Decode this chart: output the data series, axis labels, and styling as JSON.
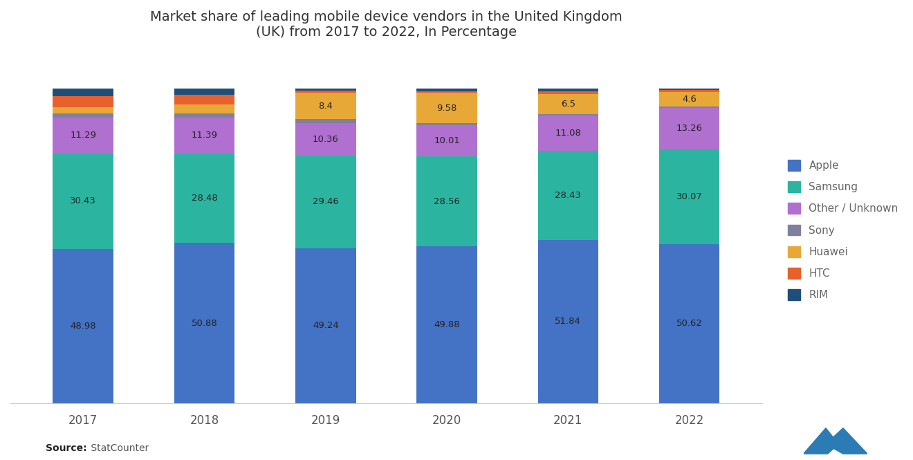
{
  "years": [
    "2017",
    "2018",
    "2019",
    "2020",
    "2021",
    "2022"
  ],
  "title": "Market share of leading mobile device vendors in the United Kingdom\n(UK) from 2017 to 2022, In Percentage",
  "source": "Source:",
  "source_name": " StatCounter",
  "series": [
    {
      "name": "Apple",
      "color": "#4472C4",
      "values": [
        48.98,
        50.88,
        49.24,
        49.88,
        51.84,
        50.62
      ]
    },
    {
      "name": "Samsung",
      "color": "#2BB5A0",
      "values": [
        30.43,
        28.48,
        29.46,
        28.56,
        28.43,
        30.07
      ]
    },
    {
      "name": "Other / Unknown",
      "color": "#B070D0",
      "values": [
        11.29,
        11.39,
        10.36,
        10.01,
        11.08,
        13.26
      ]
    },
    {
      "name": "Sony",
      "color": "#7F7F9F",
      "values": [
        1.5,
        1.3,
        1.2,
        0.6,
        0.5,
        0.4
      ]
    },
    {
      "name": "Huawei",
      "color": "#E8A838",
      "values": [
        1.8,
        2.85,
        8.4,
        9.58,
        6.5,
        4.6
      ]
    },
    {
      "name": "HTC",
      "color": "#E8602C",
      "values": [
        3.5,
        3.2,
        0.6,
        0.47,
        0.75,
        0.55
      ]
    },
    {
      "name": "RIM",
      "color": "#1F4E79",
      "values": [
        2.5,
        1.9,
        0.74,
        0.9,
        0.9,
        0.5
      ]
    }
  ],
  "ylim": [
    0,
    110
  ],
  "background_color": "#ffffff",
  "title_fontsize": 14,
  "legend_fontsize": 11,
  "tick_fontsize": 12,
  "bar_width": 0.5
}
